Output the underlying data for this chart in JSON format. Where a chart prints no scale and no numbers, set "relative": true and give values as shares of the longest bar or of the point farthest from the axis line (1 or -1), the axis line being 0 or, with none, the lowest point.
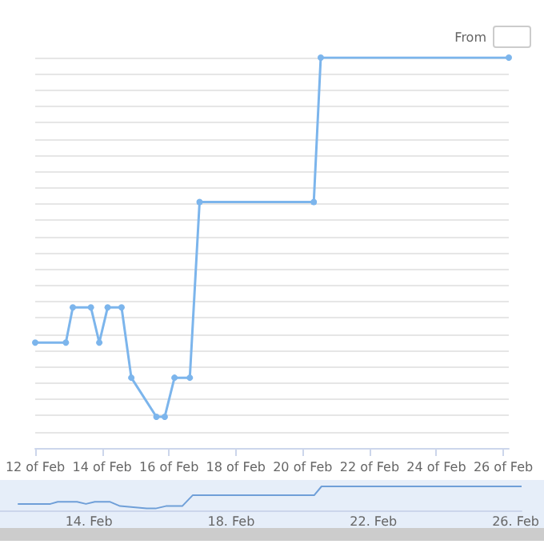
{
  "chart_data": [
    {
      "type": "line",
      "relative": true,
      "color": "#7cb5ec",
      "marker": "circle",
      "line_style": "solid",
      "grid": "y",
      "annotations": [
        "From"
      ],
      "x": [
        "--02-12T00:00",
        "--02-12T22:00",
        "--02-13T03:00",
        "--02-13T16:00",
        "--02-13T22:00",
        "--02-14T04:00",
        "--02-14T14:00",
        "--02-14T21:00",
        "--02-15T15:00",
        "--02-15T21:00",
        "--02-16T04:00",
        "--02-16T15:00",
        "--02-16T22:00",
        "--02-20T08:00",
        "--02-20T13:00",
        "--02-26T04:00"
      ],
      "values": [
        0.27,
        0.27,
        0.36,
        0.36,
        0.27,
        0.36,
        0.36,
        0.18,
        0.08,
        0.08,
        0.18,
        0.18,
        0.63,
        0.63,
        1,
        1
      ],
      "xlim": [
        "--02-12T00:00",
        "--02-26T04:00"
      ],
      "xticks": [
        {
          "value": "--02-12",
          "label": "12 of Feb"
        },
        {
          "value": "--02-14",
          "label": "14 of Feb"
        },
        {
          "value": "--02-16",
          "label": "16 of Feb"
        },
        {
          "value": "--02-18",
          "label": "18 of Feb"
        },
        {
          "value": "--02-20",
          "label": "20 of Feb"
        },
        {
          "value": "--02-22",
          "label": "22 of Feb"
        },
        {
          "value": "--02-24",
          "label": "24 of Feb"
        },
        {
          "value": "--02-26",
          "label": "26 of Feb"
        }
      ]
    },
    {
      "type": "line",
      "relative": true,
      "color": "#6f9fd8",
      "marker": "none",
      "grid": false,
      "x": [
        "--02-12T00:00",
        "--02-12T22:00",
        "--02-13T03:00",
        "--02-13T16:00",
        "--02-13T22:00",
        "--02-14T04:00",
        "--02-14T14:00",
        "--02-14T21:00",
        "--02-15T15:00",
        "--02-15T21:00",
        "--02-16T04:00",
        "--02-16T15:00",
        "--02-16T22:00",
        "--02-20T08:00",
        "--02-20T13:00",
        "--02-26T04:00"
      ],
      "values": [
        0.27,
        0.27,
        0.36,
        0.36,
        0.27,
        0.36,
        0.36,
        0.18,
        0.08,
        0.08,
        0.18,
        0.18,
        0.63,
        0.63,
        1,
        1
      ],
      "xlim": [
        "--02-11T12:00",
        "--02-26T04:00"
      ],
      "xticks": [
        {
          "value": "--02-14",
          "label": "14. Feb"
        },
        {
          "value": "--02-18",
          "label": "18. Feb"
        },
        {
          "value": "--02-22",
          "label": "22. Feb"
        },
        {
          "value": "--02-26",
          "label": "26. Feb"
        }
      ]
    }
  ]
}
